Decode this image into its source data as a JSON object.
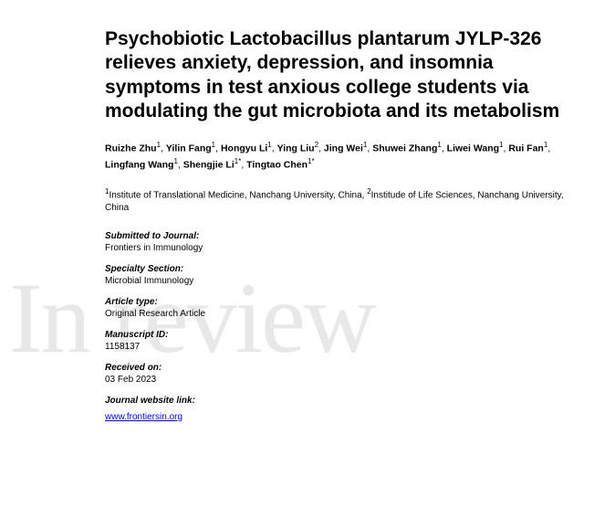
{
  "watermark": "In review",
  "title": "Psychobiotic Lactobacillus plantarum JYLP-326 relieves anxiety, depression, and insomnia symptoms in test anxious college students via modulating the gut microbiota and its metabolism",
  "authors": [
    {
      "name": "Ruizhe Zhu",
      "aff": "1"
    },
    {
      "name": "Yilin Fang",
      "aff": "1"
    },
    {
      "name": "Hongyu Li",
      "aff": "1"
    },
    {
      "name": "Ying Liu",
      "aff": "2"
    },
    {
      "name": "Jing Wei",
      "aff": "1"
    },
    {
      "name": "Shuwei Zhang",
      "aff": "1"
    },
    {
      "name": "Liwei Wang",
      "aff": "1"
    },
    {
      "name": "Rui Fan",
      "aff": "1"
    },
    {
      "name": "Lingfang Wang",
      "aff": "1"
    },
    {
      "name": "Shengjie Li",
      "aff": "1*"
    },
    {
      "name": "Tingtao Chen",
      "aff": "1*"
    }
  ],
  "affiliations_text": "Institute of Translational Medicine, Nanchang University, China, ",
  "affiliations_text2": "Institude of Life Sciences, Nanchang University, China",
  "meta": {
    "submitted_label": "Submitted to Journal:",
    "submitted_value": "Frontiers in Immunology",
    "section_label": "Specialty Section:",
    "section_value": "Microbial Immunology",
    "type_label": "Article type:",
    "type_value": "Original Research Article",
    "mid_label": "Manuscript ID:",
    "mid_value": "1158137",
    "received_label": "Received on:",
    "received_value": "03 Feb 2023",
    "link_label": "Journal website link:",
    "link_value": "www.frontiersin.org"
  }
}
